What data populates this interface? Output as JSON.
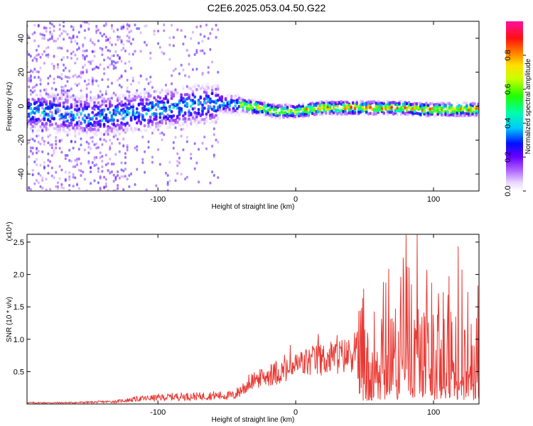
{
  "title": "C2E6.2025.053.04.50.G22",
  "colors": {
    "snr_line": "#e83a34",
    "axis": "#000000"
  },
  "chart_data": [
    {
      "type": "heatmap",
      "title": "C2E6.2025.053.04.50.G22",
      "xlabel": "Height of straight line (km)",
      "ylabel": "Frequency (Hz)",
      "xlim": [
        -195,
        133
      ],
      "ylim": [
        -50,
        50
      ],
      "x_ticks": [
        -100,
        0,
        100
      ],
      "y_ticks": [
        40,
        20,
        0,
        -20,
        -40
      ],
      "colorbar": {
        "label": "Normalized spectral amplitude",
        "range": [
          0,
          1
        ],
        "ticks": [
          "0.0",
          "0.2",
          "0.4",
          "0.6",
          "0.8"
        ],
        "tick_values": [
          0.0,
          0.2,
          0.4,
          0.6,
          0.8
        ]
      },
      "center_frequency_trace": {
        "x": [
          -195,
          -170,
          -150,
          -130,
          -110,
          -90,
          -70,
          -55,
          -45,
          -35,
          -25,
          -15,
          -5,
          0,
          10,
          20,
          30,
          40,
          50,
          60,
          70,
          80,
          90,
          100,
          110,
          120,
          133
        ],
        "y": [
          -3,
          -4,
          -6,
          -5,
          -3,
          -1,
          1,
          2,
          1,
          0,
          -1,
          -3,
          -3,
          -3,
          -2,
          -1,
          -1,
          -1,
          -1,
          -1,
          -1,
          -1,
          -2,
          -2,
          -2,
          -2,
          -2
        ]
      }
    },
    {
      "type": "line",
      "xlabel": "Height of straight line (km)",
      "ylabel": "SNR (10 * v/v)",
      "y_scale_note": "(x10⁴)",
      "xlim": [
        -195,
        133
      ],
      "ylim": [
        0,
        2.62
      ],
      "x_ticks": [
        -100,
        0,
        100
      ],
      "y_ticks": [
        0.5,
        1.0,
        1.5,
        2.0,
        2.5
      ],
      "y_tick_labels": [
        "0.5",
        "1.0",
        "1.5",
        "2.0",
        "2.5"
      ],
      "series": [
        {
          "envelope_x": [
            -195,
            -170,
            -150,
            -130,
            -115,
            -100,
            -85,
            -70,
            -60,
            -45,
            -35,
            -25,
            -15,
            -5,
            0,
            10,
            20,
            30,
            40,
            43,
            50,
            60,
            70,
            80,
            90,
            97,
            100,
            110,
            120,
            126,
            133
          ],
          "envelope_y": [
            0.03,
            0.03,
            0.04,
            0.06,
            0.12,
            0.15,
            0.18,
            0.18,
            0.2,
            0.2,
            0.45,
            0.55,
            0.65,
            0.72,
            0.8,
            0.9,
            0.95,
            1.0,
            1.05,
            1.2,
            1.0,
            1.05,
            1.1,
            1.2,
            1.3,
            1.8,
            1.2,
            1.2,
            1.25,
            1.1,
            1.1
          ]
        }
      ]
    }
  ]
}
